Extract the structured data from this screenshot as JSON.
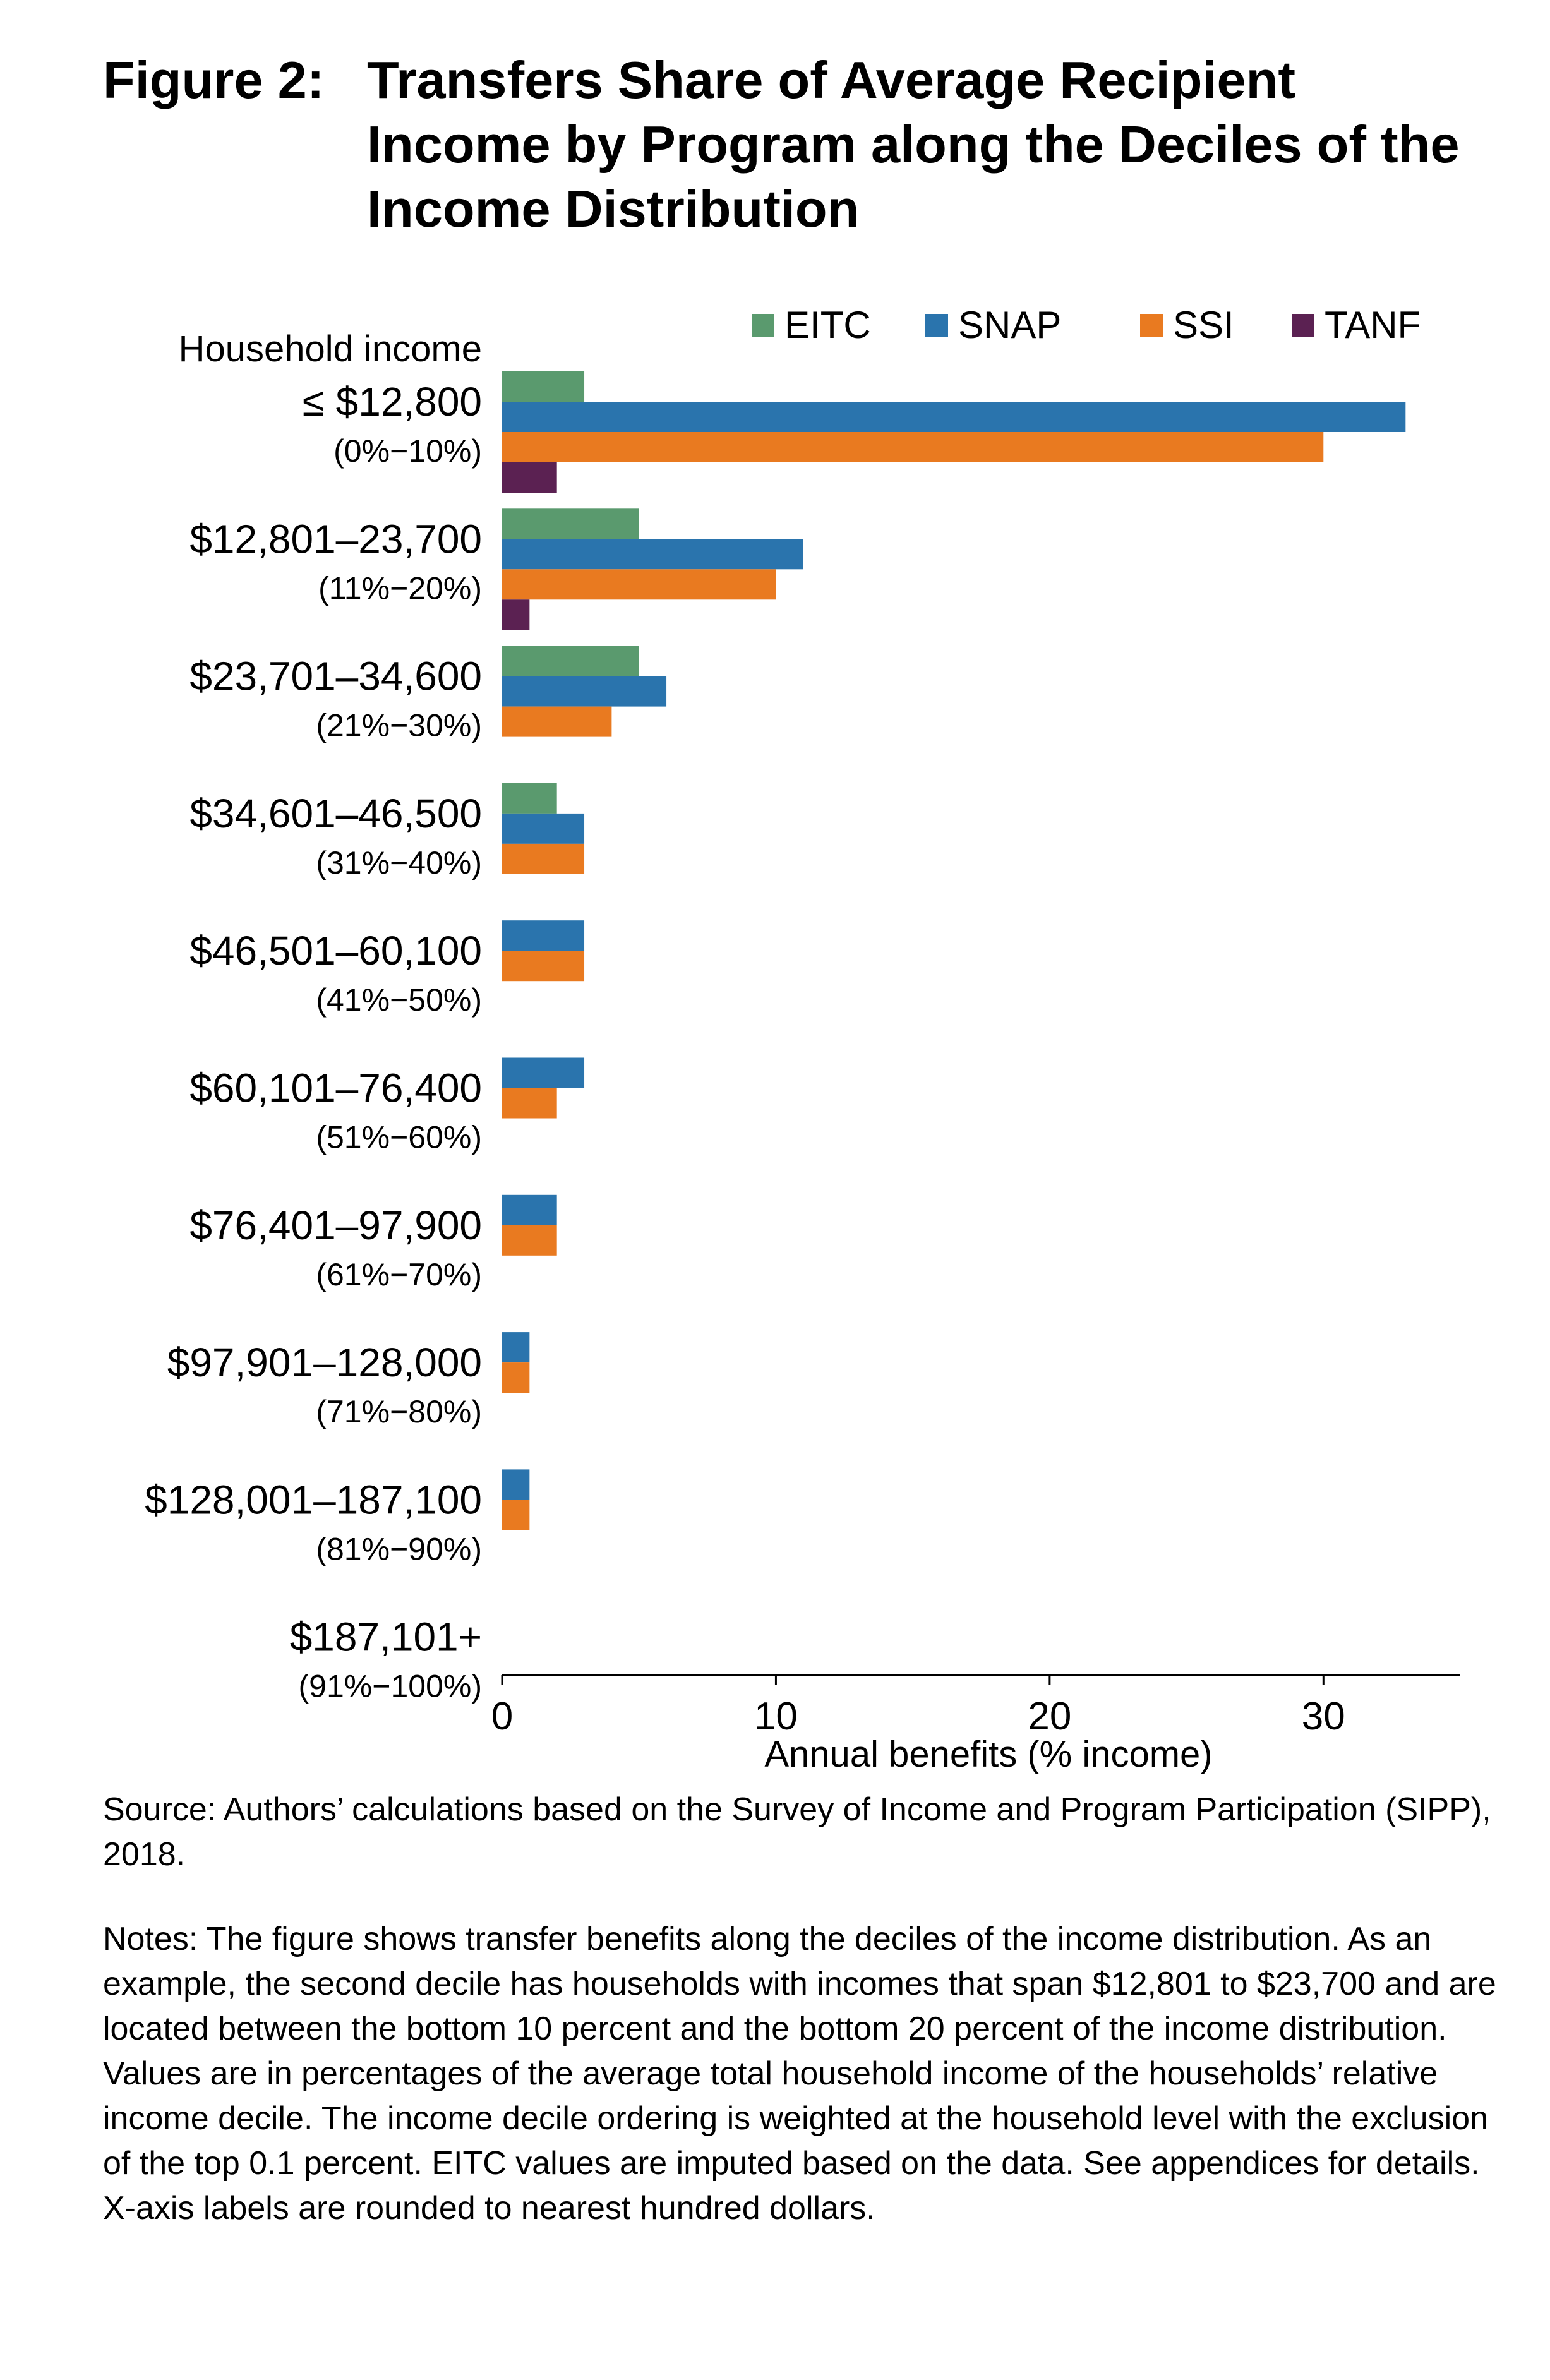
{
  "title": {
    "prefix": "Figure 2:",
    "body": "Transfers Share of Average Recipient Income by Program along the Deciles of the Income Distribution"
  },
  "chart_data": {
    "type": "bar",
    "orientation": "horizontal",
    "title": "Figure 2: Transfers Share of Average Recipient Income by Program along the Deciles of the Income Distribution",
    "ylabel": "Household income",
    "xlabel": "Annual benefits (% income)",
    "xlim": [
      0,
      35
    ],
    "xticks": [
      0,
      10,
      20,
      30
    ],
    "grid": false,
    "legend_position": "top",
    "categories": [
      {
        "label": "≤ $12,800",
        "sub": "(0%−10%)"
      },
      {
        "label": "$12,801–23,700",
        "sub": "(11%−20%)"
      },
      {
        "label": "$23,701–34,600",
        "sub": "(21%−30%)"
      },
      {
        "label": "$34,601–46,500",
        "sub": "(31%−40%)"
      },
      {
        "label": "$46,501–60,100",
        "sub": "(41%−50%)"
      },
      {
        "label": "$60,101–76,400",
        "sub": "(51%−60%)"
      },
      {
        "label": "$76,401–97,900",
        "sub": "(61%−70%)"
      },
      {
        "label": "$97,901–128,000",
        "sub": "(71%−80%)"
      },
      {
        "label": "$128,001–187,100",
        "sub": "(81%−90%)"
      },
      {
        "label": "$187,101+",
        "sub": "(91%−100%)"
      }
    ],
    "series": [
      {
        "name": "EITC",
        "color": "#5a9a6e",
        "values": [
          3,
          5,
          5,
          2,
          0,
          0,
          0,
          0,
          0,
          0
        ]
      },
      {
        "name": "SNAP",
        "color": "#2a74ad",
        "values": [
          33,
          11,
          6,
          3,
          3,
          3,
          2,
          1,
          1,
          0
        ]
      },
      {
        "name": "SSI",
        "color": "#e97a20",
        "values": [
          30,
          10,
          4,
          3,
          3,
          2,
          2,
          1,
          1,
          0
        ]
      },
      {
        "name": "TANF",
        "color": "#5b2152",
        "values": [
          2,
          1,
          0,
          0,
          0,
          0,
          0,
          0,
          0,
          0
        ]
      }
    ]
  },
  "source": "Source: Authors’ calculations based on the Survey of Income and Program Participation (SIPP), 2018.",
  "notes": "Notes: The figure shows transfer benefits along the deciles of the income distribution. As an example, the second decile has households with incomes that span $12,801 to $23,700 and are located between the bottom 10 percent and the bottom 20 percent of the income distribution. Values are in percentages of the average total household income of the households’ relative income decile. The income decile ordering is weighted at the household level with the exclusion of the top 0.1 percent. EITC values are imputed based on the data. See appendices for details. X-axis labels are rounded to nearest hundred dollars."
}
